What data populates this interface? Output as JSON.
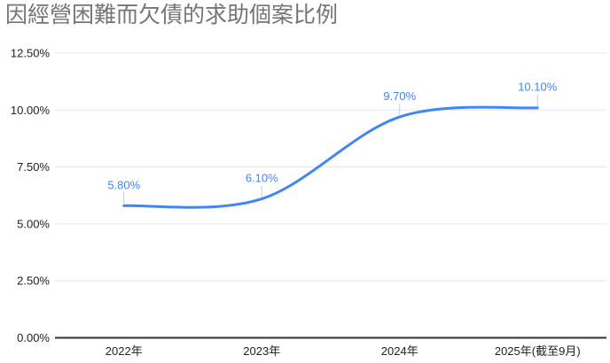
{
  "colors": {
    "background": "#ffffff",
    "title_text": "#757575",
    "axis_text": "#1f1f1f",
    "gridline": "#e6e6e6",
    "axis_line": "#333333",
    "series_line": "#4285f4",
    "data_label": "#4285f4",
    "leader_line": "#cccccc"
  },
  "chart_data": {
    "type": "line",
    "smooth": true,
    "title": "因經營困難而欠債的求助個案比例",
    "categories": [
      "2022年",
      "2023年",
      "2024年",
      "2025年(截至9月)"
    ],
    "values": [
      5.8,
      6.1,
      9.7,
      10.1
    ],
    "value_labels": [
      "5.80%",
      "6.10%",
      "9.70%",
      "10.10%"
    ],
    "xlabel": "",
    "ylabel": "",
    "ylim": [
      0,
      12.5
    ],
    "yticks": [
      0,
      2.5,
      5,
      7.5,
      10,
      12.5
    ],
    "ytick_labels": [
      "0.00%",
      "2.50%",
      "5.00%",
      "7.50%",
      "10.00%",
      "12.50%"
    ],
    "grid": true,
    "legend_position": "none"
  }
}
